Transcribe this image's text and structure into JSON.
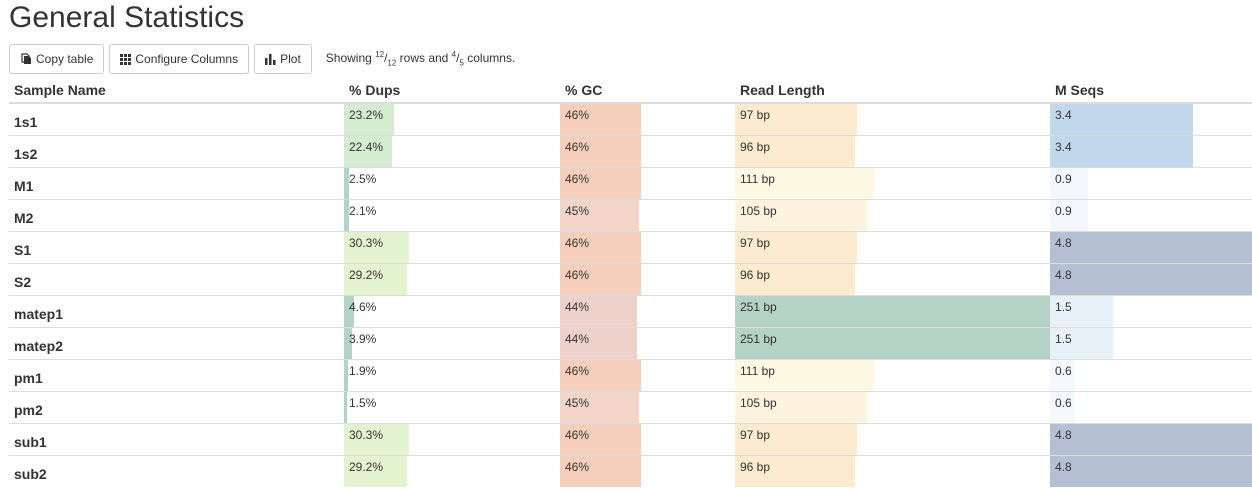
{
  "title": "General Statistics",
  "toolbar": {
    "copy_label": "Copy table",
    "configure_label": "Configure Columns",
    "plot_label": "Plot",
    "showing_prefix": "Showing ",
    "rows_shown": "12",
    "rows_total": "12",
    "rows_word": " rows and ",
    "cols_shown": "4",
    "cols_total": "5",
    "cols_word": " columns."
  },
  "columns": [
    "Sample Name",
    "% Dups",
    "% GC",
    "Read Length",
    "M Seqs"
  ],
  "scales": {
    "dups_max": 100,
    "gc_max": 100,
    "readlen_max": 251,
    "mseqs_max": 4.8
  },
  "rows": [
    {
      "name": "1s1",
      "dups": "23.2%",
      "dups_v": 23.2,
      "dups_color": "#d6ecd1",
      "gc": "46%",
      "gc_v": 46,
      "gc_color": "#f5cfbb",
      "len": "97 bp",
      "len_v": 97,
      "len_color": "#fdebd0",
      "mseqs": "3.4",
      "mseqs_v": 3.4,
      "mseqs_color": "#c1d8ec"
    },
    {
      "name": "1s2",
      "dups": "22.4%",
      "dups_v": 22.4,
      "dups_color": "#d6ecd1",
      "gc": "46%",
      "gc_v": 46,
      "gc_color": "#f5cfbb",
      "len": "96 bp",
      "len_v": 96,
      "len_color": "#fdebd0",
      "mseqs": "3.4",
      "mseqs_v": 3.4,
      "mseqs_color": "#c1d8ec"
    },
    {
      "name": "M1",
      "dups": "2.5%",
      "dups_v": 2.5,
      "dups_color": "#b3d3c4",
      "gc": "46%",
      "gc_v": 46,
      "gc_color": "#f5cfbb",
      "len": "111 bp",
      "len_v": 111,
      "len_color": "#fdf8e1",
      "mseqs": "0.9",
      "mseqs_v": 0.9,
      "mseqs_color": "#f3f7fb"
    },
    {
      "name": "M2",
      "dups": "2.1%",
      "dups_v": 2.1,
      "dups_color": "#b3d3c4",
      "gc": "45%",
      "gc_v": 45,
      "gc_color": "#f2d4c8",
      "len": "105 bp",
      "len_v": 105,
      "len_color": "#fdf3dc",
      "mseqs": "0.9",
      "mseqs_v": 0.9,
      "mseqs_color": "#f3f7fb"
    },
    {
      "name": "S1",
      "dups": "30.3%",
      "dups_v": 30.3,
      "dups_color": "#e3f3d0",
      "gc": "46%",
      "gc_v": 46,
      "gc_color": "#f5cfbb",
      "len": "97 bp",
      "len_v": 97,
      "len_color": "#fdebd0",
      "mseqs": "4.8",
      "mseqs_v": 4.8,
      "mseqs_color": "#b4bfd2"
    },
    {
      "name": "S2",
      "dups": "29.2%",
      "dups_v": 29.2,
      "dups_color": "#e3f3d0",
      "gc": "46%",
      "gc_v": 46,
      "gc_color": "#f5cfbb",
      "len": "96 bp",
      "len_v": 96,
      "len_color": "#fdebd0",
      "mseqs": "4.8",
      "mseqs_v": 4.8,
      "mseqs_color": "#b4bfd2"
    },
    {
      "name": "matep1",
      "dups": "4.6%",
      "dups_v": 4.6,
      "dups_color": "#b3d3c4",
      "gc": "44%",
      "gc_v": 44,
      "gc_color": "#efd1cb",
      "len": "251 bp",
      "len_v": 251,
      "len_color": "#b4d3c4",
      "mseqs": "1.5",
      "mseqs_v": 1.5,
      "mseqs_color": "#e8f0f8"
    },
    {
      "name": "matep2",
      "dups": "3.9%",
      "dups_v": 3.9,
      "dups_color": "#b3d3c4",
      "gc": "44%",
      "gc_v": 44,
      "gc_color": "#efd1cb",
      "len": "251 bp",
      "len_v": 251,
      "len_color": "#b4d3c4",
      "mseqs": "1.5",
      "mseqs_v": 1.5,
      "mseqs_color": "#e8f0f8"
    },
    {
      "name": "pm1",
      "dups": "1.9%",
      "dups_v": 1.9,
      "dups_color": "#b3d3c4",
      "gc": "46%",
      "gc_v": 46,
      "gc_color": "#f5cfbb",
      "len": "111 bp",
      "len_v": 111,
      "len_color": "#fdf8e1",
      "mseqs": "0.6",
      "mseqs_v": 0.6,
      "mseqs_color": "#f6f9fc"
    },
    {
      "name": "pm2",
      "dups": "1.5%",
      "dups_v": 1.5,
      "dups_color": "#b3d3c4",
      "gc": "45%",
      "gc_v": 45,
      "gc_color": "#f2d4c8",
      "len": "105 bp",
      "len_v": 105,
      "len_color": "#fdf3dc",
      "mseqs": "0.6",
      "mseqs_v": 0.6,
      "mseqs_color": "#f6f9fc"
    },
    {
      "name": "sub1",
      "dups": "30.3%",
      "dups_v": 30.3,
      "dups_color": "#e3f3d0",
      "gc": "46%",
      "gc_v": 46,
      "gc_color": "#f5cfbb",
      "len": "97 bp",
      "len_v": 97,
      "len_color": "#fdebd0",
      "mseqs": "4.8",
      "mseqs_v": 4.8,
      "mseqs_color": "#b4bfd2"
    },
    {
      "name": "sub2",
      "dups": "29.2%",
      "dups_v": 29.2,
      "dups_color": "#e3f3d0",
      "gc": "46%",
      "gc_v": 46,
      "gc_color": "#f5cfbb",
      "len": "96 bp",
      "len_v": 96,
      "len_color": "#fdebd0",
      "mseqs": "4.8",
      "mseqs_v": 4.8,
      "mseqs_color": "#b4bfd2"
    }
  ],
  "icons": {
    "copy": "copy-icon",
    "configure": "grid-icon",
    "plot": "bar-chart-icon"
  }
}
